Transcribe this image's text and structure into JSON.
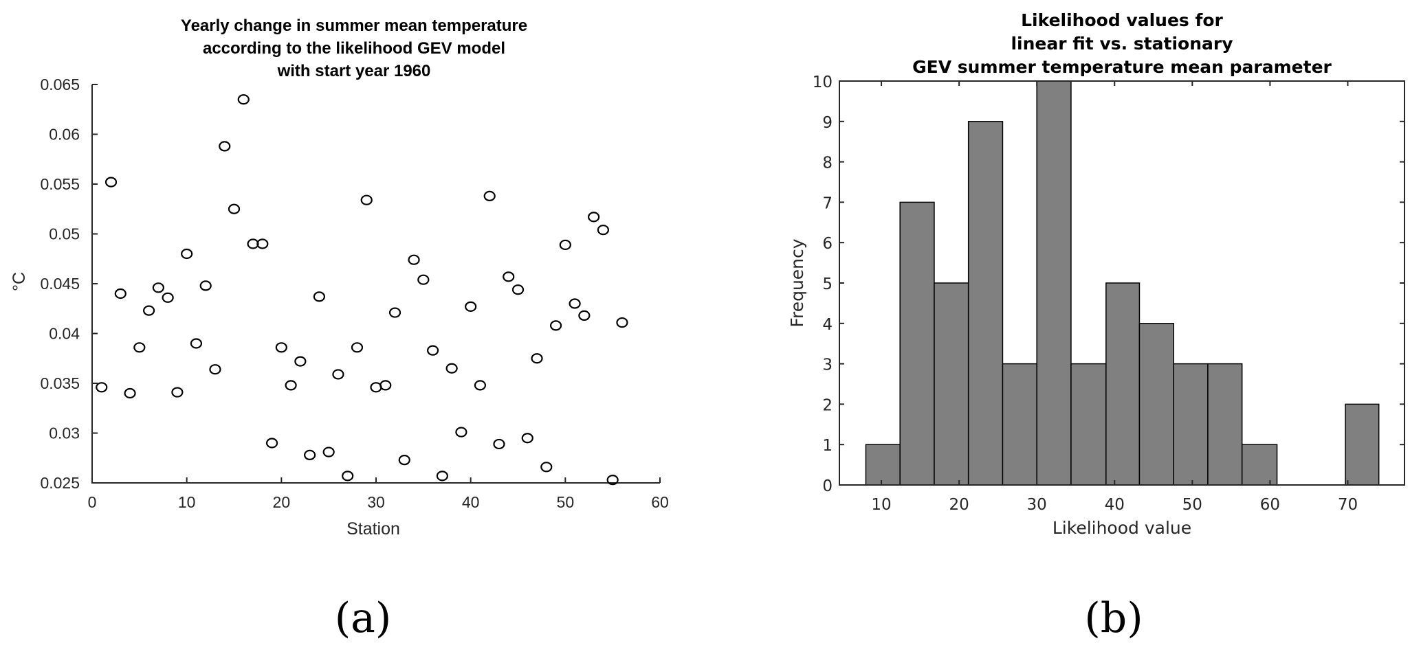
{
  "chart_data": [
    {
      "type": "scatter",
      "panel": "a",
      "title": [
        "Yearly change in summer mean temperature",
        "according to the likelihood GEV model",
        "with start year 1960"
      ],
      "xlabel": "Station",
      "ylabel": "°C",
      "xlim": [
        0,
        60
      ],
      "ylim": [
        0.025,
        0.065
      ],
      "xticks": [
        0,
        10,
        20,
        30,
        40,
        50,
        60
      ],
      "xtick_labels": [
        "0",
        "10",
        "20",
        "30",
        "40",
        "50",
        "60"
      ],
      "yticks": [
        0.025,
        0.03,
        0.035,
        0.04,
        0.045,
        0.05,
        0.055,
        0.06,
        0.065
      ],
      "ytick_labels": [
        "0.025",
        "0.03",
        "0.035",
        "0.04",
        "0.045",
        "0.05",
        "0.055",
        "0.06",
        "0.065"
      ],
      "grid": false,
      "marker": "open-circle",
      "x": [
        1,
        2,
        3,
        4,
        5,
        6,
        7,
        8,
        9,
        10,
        11,
        12,
        13,
        14,
        15,
        16,
        17,
        18,
        19,
        20,
        21,
        22,
        23,
        24,
        25,
        26,
        27,
        28,
        29,
        30,
        31,
        32,
        33,
        34,
        35,
        36,
        37,
        38,
        39,
        40,
        41,
        42,
        43,
        44,
        45,
        46,
        47,
        48,
        49,
        50,
        51,
        52,
        53,
        54,
        55,
        56
      ],
      "y": [
        0.0346,
        0.0552,
        0.044,
        0.034,
        0.0386,
        0.0423,
        0.0446,
        0.0436,
        0.0341,
        0.048,
        0.039,
        0.0448,
        0.0364,
        0.0588,
        0.0525,
        0.0635,
        0.049,
        0.049,
        0.029,
        0.0386,
        0.0348,
        0.0372,
        0.0278,
        0.0437,
        0.0281,
        0.0359,
        0.0257,
        0.0386,
        0.0534,
        0.0346,
        0.0348,
        0.0421,
        0.0273,
        0.0474,
        0.0454,
        0.0383,
        0.0257,
        0.0365,
        0.0301,
        0.0427,
        0.0348,
        0.0538,
        0.0289,
        0.0457,
        0.0444,
        0.0295,
        0.0375,
        0.0266,
        0.0408,
        0.0489,
        0.043,
        0.0418,
        0.0517,
        0.0504,
        0.0253,
        0.0411
      ]
    },
    {
      "type": "bar",
      "subtype": "histogram",
      "panel": "b",
      "title": [
        "Likelihood values for",
        "linear fit vs. stationary",
        "GEV summer temperature mean parameter"
      ],
      "xlabel": "Likelihood value",
      "ylabel": "Frequency",
      "xlim": [
        4.6,
        77.3
      ],
      "ylim": [
        0,
        10
      ],
      "xticks": [
        10,
        20,
        30,
        40,
        50,
        60,
        70
      ],
      "xtick_labels": [
        "10",
        "20",
        "30",
        "40",
        "50",
        "60",
        "70"
      ],
      "yticks": [
        0,
        1,
        2,
        3,
        4,
        5,
        6,
        7,
        8,
        9,
        10
      ],
      "ytick_labels": [
        "0",
        "1",
        "2",
        "3",
        "4",
        "5",
        "6",
        "7",
        "8",
        "9",
        "10"
      ],
      "grid": false,
      "bin_edges": [
        8.0,
        12.4,
        16.8,
        21.2,
        25.6,
        30.0,
        34.4,
        38.9,
        43.2,
        47.6,
        52.0,
        56.4,
        60.9,
        65.3,
        69.7,
        74.0
      ],
      "values": [
        1,
        7,
        5,
        9,
        3,
        10,
        3,
        5,
        4,
        3,
        3,
        1,
        0,
        0,
        2
      ],
      "colors": {
        "bar_fill": "#808080",
        "bar_edge": "#000000"
      }
    }
  ],
  "captions": {
    "a": "(a)",
    "b": "(b)"
  }
}
